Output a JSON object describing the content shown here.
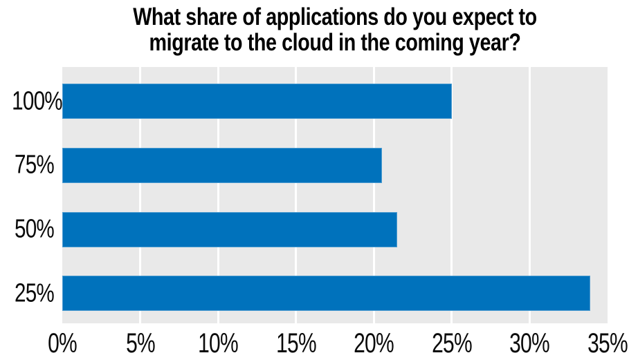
{
  "title": {
    "line1": "What share of applications do you expect to",
    "line2": "migrate to the cloud in the coming year?"
  },
  "chart_data": {
    "type": "bar",
    "orientation": "horizontal",
    "title": "What share of applications do you expect to migrate to the cloud in the coming year?",
    "categories": [
      "100%",
      "75%",
      "50%",
      "25%"
    ],
    "values": [
      25,
      20.5,
      21.5,
      33.9
    ],
    "x_ticks": [
      "0%",
      "5%",
      "10%",
      "15%",
      "20%",
      "25%",
      "30%",
      "35%"
    ],
    "x_tick_values": [
      0,
      5,
      10,
      15,
      20,
      25,
      30,
      35
    ],
    "xlim": [
      0,
      35
    ],
    "xlabel": "",
    "ylabel": "",
    "legend": "none",
    "grid": "vertical-white-gridlines-every-5pct",
    "colors": {
      "bar": "#0072bc",
      "plot_background": "#e9e9e9",
      "gridline": "#ffffff",
      "text": "#000000"
    }
  }
}
